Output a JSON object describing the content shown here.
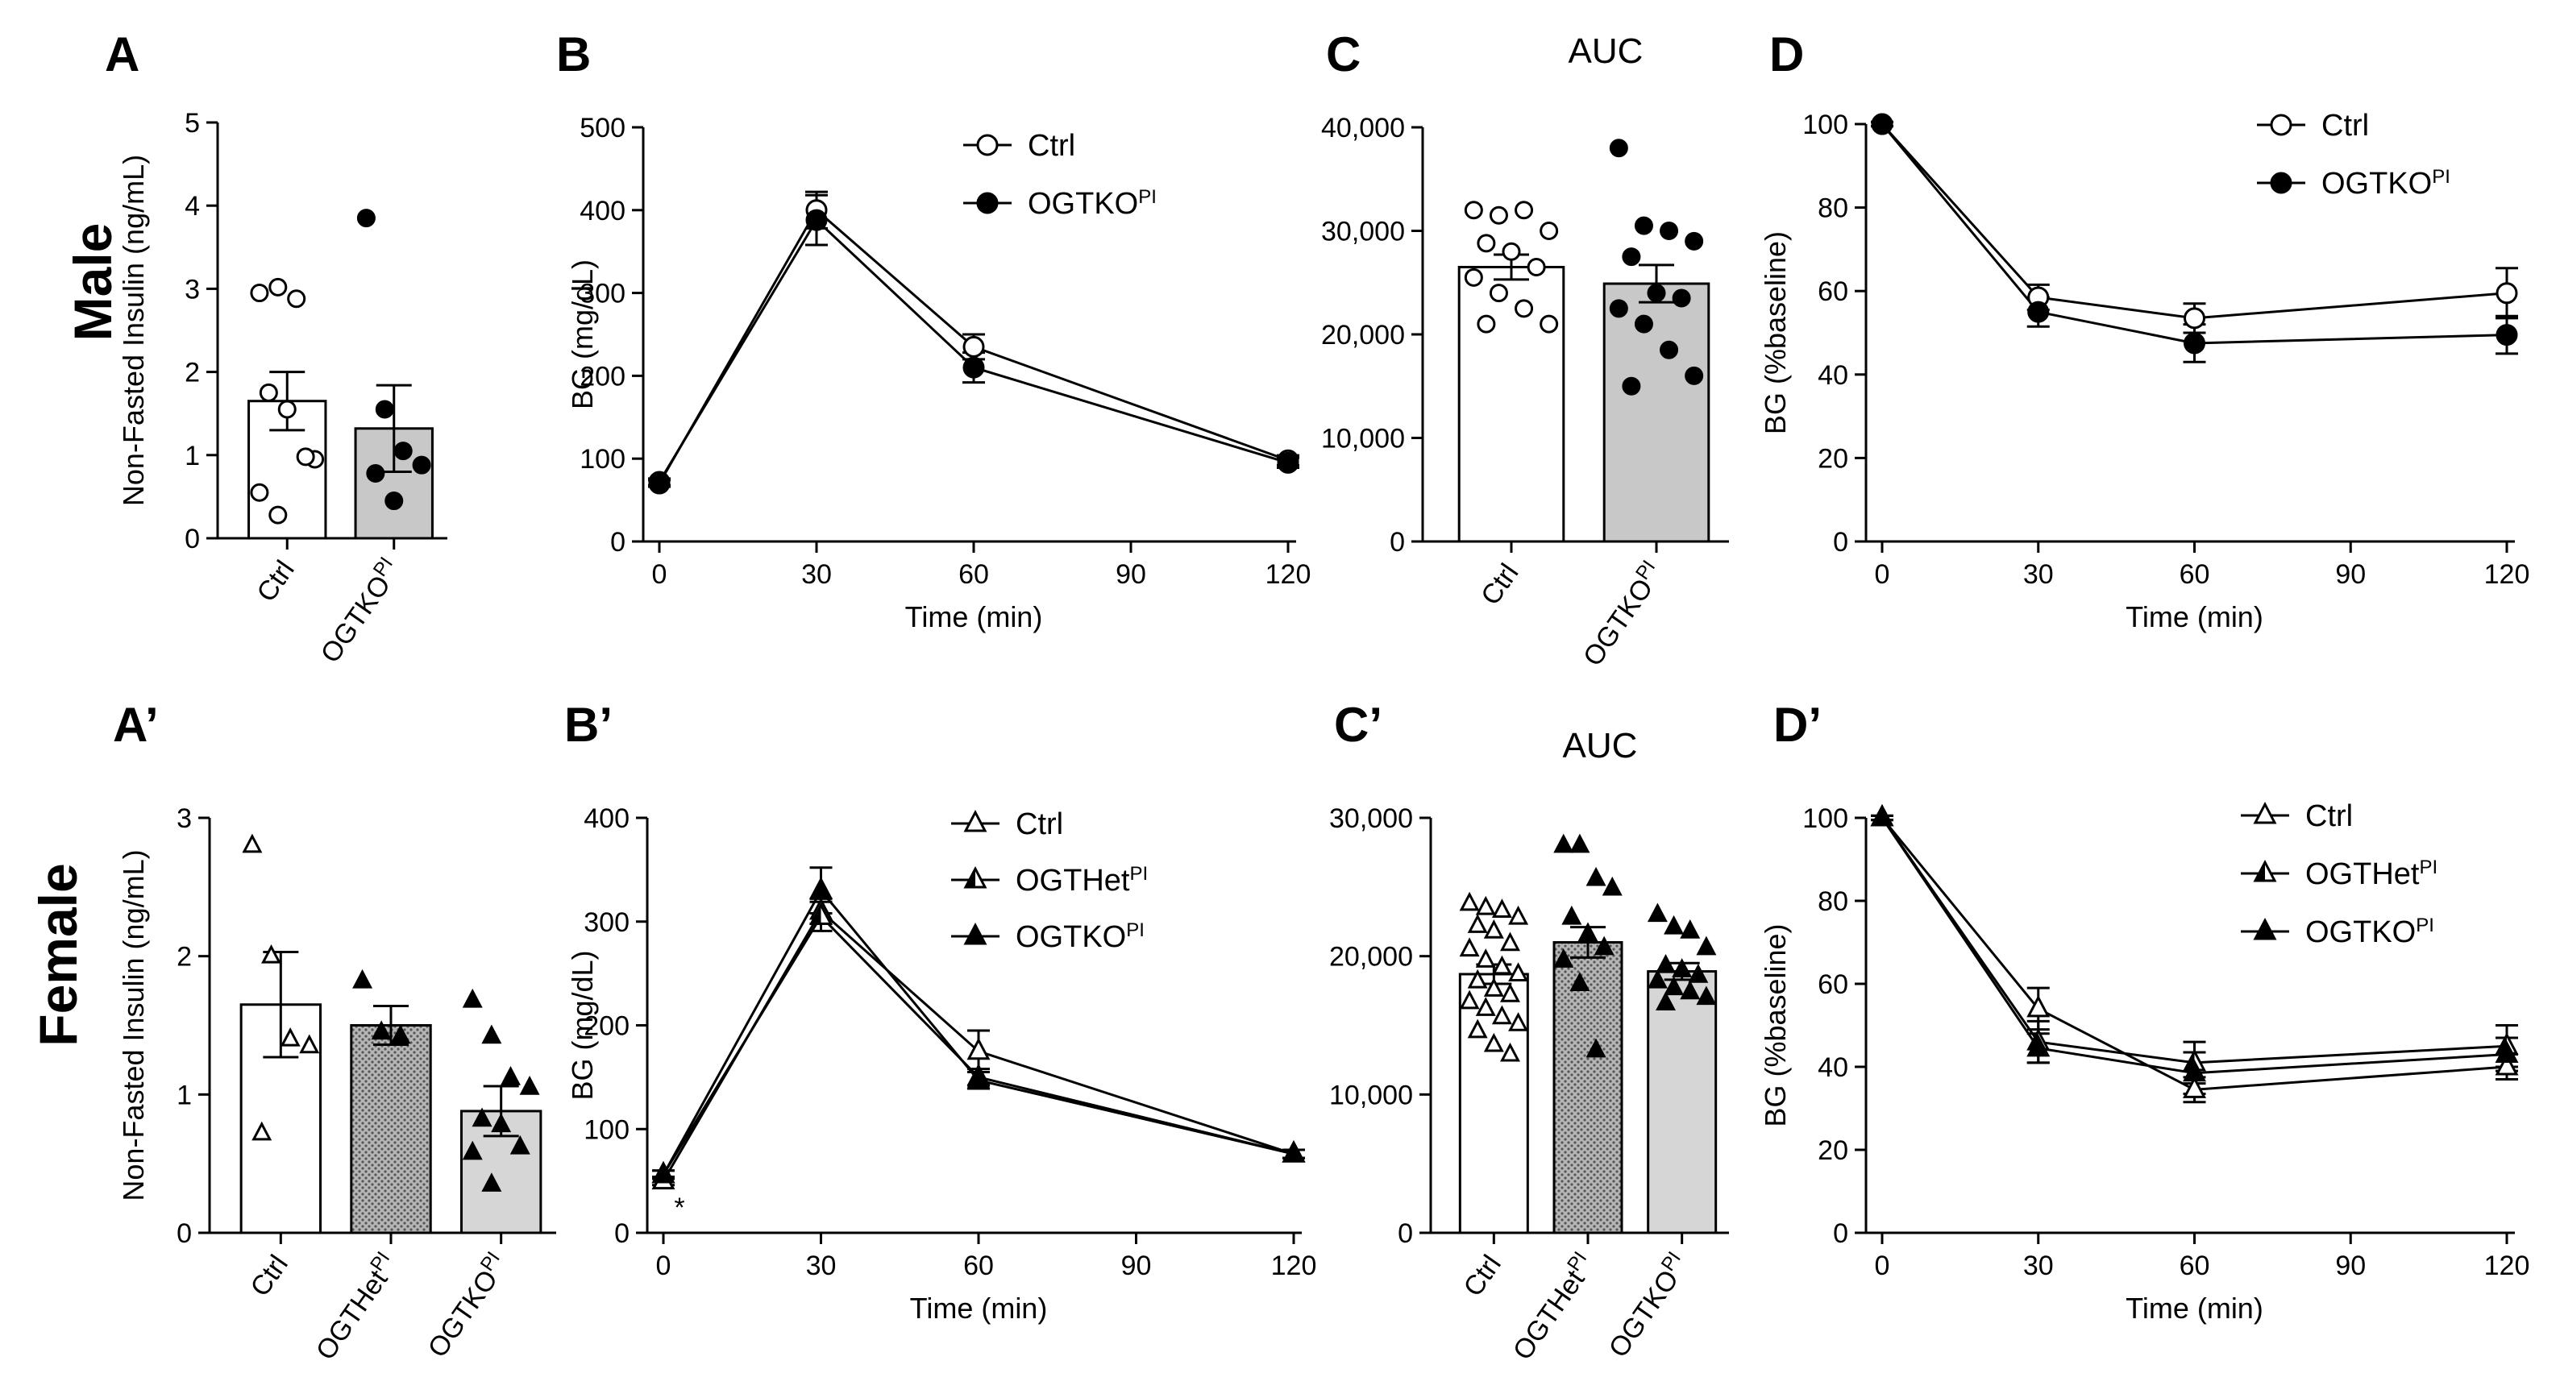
{
  "rows": [
    {
      "label": "Male"
    },
    {
      "label": "Female"
    }
  ],
  "colors": {
    "ink": "#000000",
    "bar_gray": "#c8c8c8",
    "bar_white": "#ffffff"
  },
  "chart_data": [
    {
      "id": "A",
      "panel_label": "A",
      "type": "bar",
      "title": "",
      "ylabel": "Non-Fasted Insulin (ng/mL)",
      "xlabel": "",
      "ylim": [
        0,
        5
      ],
      "yticks": [
        0,
        1,
        2,
        3,
        4,
        5
      ],
      "categories": [
        {
          "name": "Ctrl",
          "sup": ""
        },
        {
          "name": "OGTKO",
          "sup": "PI"
        }
      ],
      "values": [
        1.65,
        1.32
      ],
      "errors": [
        0.35,
        0.52
      ],
      "fills": [
        "white",
        "gray"
      ],
      "markers": [
        "circle-open",
        "circle-filled"
      ],
      "points": [
        [
          2.95,
          3.02,
          2.88,
          0.95,
          1.75,
          1.55,
          0.98,
          0.55,
          0.28
        ],
        [
          3.85,
          1.55,
          1.05,
          0.88,
          0.78,
          0.45
        ]
      ]
    },
    {
      "id": "B",
      "panel_label": "B",
      "type": "line",
      "title": "",
      "ylabel": "BG (mg/dL)",
      "xlabel": "Time (min)",
      "xlim": [
        0,
        120
      ],
      "ylim": [
        0,
        500
      ],
      "xticks": [
        0,
        30,
        60,
        90,
        120
      ],
      "yticks": [
        0,
        100,
        200,
        300,
        400,
        500
      ],
      "x": [
        0,
        30,
        60,
        120
      ],
      "series": [
        {
          "name": "Ctrl",
          "sup": "",
          "marker": "circle-open",
          "values": [
            70,
            400,
            235,
            98
          ],
          "errors": [
            4,
            22,
            15,
            6
          ]
        },
        {
          "name": "OGTKO",
          "sup": "PI",
          "marker": "circle-filled",
          "values": [
            72,
            388,
            210,
            95
          ],
          "errors": [
            4,
            30,
            18,
            6
          ]
        }
      ]
    },
    {
      "id": "C",
      "panel_label": "C",
      "type": "bar",
      "title": "AUC",
      "ylabel": "",
      "xlabel": "",
      "ylim": [
        0,
        40000
      ],
      "yticks": [
        0,
        10000,
        20000,
        30000,
        40000
      ],
      "ytick_labels": [
        "0",
        "10,000",
        "20,000",
        "30,000",
        "40,000"
      ],
      "categories": [
        {
          "name": "Ctrl",
          "sup": ""
        },
        {
          "name": "OGTKO",
          "sup": "PI"
        }
      ],
      "values": [
        26500,
        24900
      ],
      "errors": [
        1200,
        1800
      ],
      "fills": [
        "white",
        "gray"
      ],
      "markers": [
        "circle-open",
        "circle-filled"
      ],
      "points": [
        [
          32000,
          31500,
          32000,
          30000,
          28800,
          28000,
          26500,
          25500,
          24000,
          22500,
          21000,
          21000
        ],
        [
          38000,
          30500,
          30000,
          29000,
          27500,
          24000,
          23500,
          22500,
          21000,
          18500,
          16000,
          15000
        ]
      ]
    },
    {
      "id": "D",
      "panel_label": "D",
      "type": "line",
      "title": "",
      "ylabel": "BG (%baseline)",
      "xlabel": "Time (min)",
      "xlim": [
        0,
        120
      ],
      "ylim": [
        0,
        100
      ],
      "xticks": [
        0,
        30,
        60,
        90,
        120
      ],
      "yticks": [
        0,
        20,
        40,
        60,
        80,
        100
      ],
      "x": [
        0,
        30,
        60,
        120
      ],
      "series": [
        {
          "name": "Ctrl",
          "sup": "",
          "marker": "circle-open",
          "values": [
            100,
            58.5,
            53.5,
            59.5
          ],
          "errors": [
            0.5,
            3,
            3.5,
            6
          ]
        },
        {
          "name": "OGTKO",
          "sup": "PI",
          "marker": "circle-filled",
          "values": [
            100,
            55,
            47.5,
            49.5
          ],
          "errors": [
            0.5,
            3.5,
            4.5,
            4.5
          ]
        }
      ]
    },
    {
      "id": "A2",
      "panel_label": "A’",
      "type": "bar",
      "title": "",
      "ylabel": "Non-Fasted Insulin (ng/mL)",
      "xlabel": "",
      "ylim": [
        0,
        3
      ],
      "yticks": [
        0,
        1,
        2,
        3
      ],
      "categories": [
        {
          "name": "Ctrl",
          "sup": ""
        },
        {
          "name": "OGTHet",
          "sup": "PI"
        },
        {
          "name": "OGTKO",
          "sup": "PI"
        }
      ],
      "values": [
        1.65,
        1.5,
        0.88
      ],
      "errors": [
        0.38,
        0.14,
        0.18
      ],
      "fills": [
        "white",
        "hatch",
        "lightgray"
      ],
      "markers": [
        "triangle-open",
        "triangle-filled",
        "triangle-filled"
      ],
      "points": [
        [
          2.8,
          2.0,
          1.4,
          1.35,
          0.72
        ],
        [
          1.82,
          1.45,
          1.42
        ],
        [
          1.68,
          1.42,
          1.12,
          1.05,
          0.82,
          0.78,
          0.62,
          0.58,
          0.35
        ]
      ]
    },
    {
      "id": "B2",
      "panel_label": "B’",
      "type": "line",
      "title": "",
      "ylabel": "BG (mg/dL)",
      "xlabel": "Time (min)",
      "xlim": [
        0,
        120
      ],
      "ylim": [
        0,
        400
      ],
      "xticks": [
        0,
        30,
        60,
        90,
        120
      ],
      "yticks": [
        0,
        100,
        200,
        300,
        400
      ],
      "x": [
        0,
        30,
        60,
        120
      ],
      "annotation": "*",
      "series": [
        {
          "name": "Ctrl",
          "sup": "",
          "marker": "triangle-open",
          "values": [
            50,
            310,
            175,
            76
          ],
          "errors": [
            4,
            12,
            20,
            4
          ]
        },
        {
          "name": "OGTHet",
          "sup": "PI",
          "marker": "triangle-half",
          "values": [
            56,
            305,
            150,
            76
          ],
          "errors": [
            4,
            14,
            8,
            4
          ]
        },
        {
          "name": "OGTKO",
          "sup": "PI",
          "marker": "triangle-filled",
          "values": [
            56,
            330,
            147,
            76
          ],
          "errors": [
            4,
            22,
            8,
            4
          ]
        }
      ]
    },
    {
      "id": "C2",
      "panel_label": "C’",
      "type": "bar",
      "title": "AUC",
      "ylabel": "",
      "xlabel": "",
      "ylim": [
        0,
        30000
      ],
      "yticks": [
        0,
        10000,
        20000,
        30000
      ],
      "ytick_labels": [
        "0",
        "10,000",
        "20,000",
        "30,000"
      ],
      "categories": [
        {
          "name": "Ctrl",
          "sup": ""
        },
        {
          "name": "OGTHet",
          "sup": "PI"
        },
        {
          "name": "OGTKO",
          "sup": "PI"
        }
      ],
      "values": [
        18700,
        21000,
        18900
      ],
      "errors": [
        700,
        1100,
        600
      ],
      "fills": [
        "white",
        "hatch",
        "lightgray"
      ],
      "markers": [
        "triangle-open",
        "triangle-filled",
        "triangle-filled"
      ],
      "points": [
        [
          23800,
          23500,
          23300,
          22800,
          22200,
          21800,
          20900,
          20500,
          19700,
          19200,
          18700,
          18200,
          17600,
          17200,
          16700,
          16200,
          15600,
          15100,
          14600,
          13600,
          12900
        ],
        [
          28000,
          28000,
          25600,
          24900,
          22800,
          21600,
          20600,
          19700,
          18000,
          13200
        ],
        [
          23000,
          22100,
          21800,
          20600,
          19300,
          19000,
          18600,
          18200,
          17700,
          17400,
          17000,
          16600
        ]
      ]
    },
    {
      "id": "D2",
      "panel_label": "D’",
      "type": "line",
      "title": "",
      "ylabel": "BG (%baseline)",
      "xlabel": "Time (min)",
      "xlim": [
        0,
        120
      ],
      "ylim": [
        0,
        100
      ],
      "xticks": [
        0,
        30,
        60,
        90,
        120
      ],
      "yticks": [
        0,
        20,
        40,
        60,
        80,
        100
      ],
      "x": [
        0,
        30,
        60,
        120
      ],
      "series": [
        {
          "name": "Ctrl",
          "sup": "",
          "marker": "triangle-open",
          "values": [
            100,
            54,
            34.5,
            40
          ],
          "errors": [
            0.5,
            5,
            3,
            3
          ]
        },
        {
          "name": "OGTHet",
          "sup": "PI",
          "marker": "triangle-half",
          "values": [
            100,
            46,
            41,
            45
          ],
          "errors": [
            0.5,
            5,
            5,
            5
          ]
        },
        {
          "name": "OGTKO",
          "sup": "PI",
          "marker": "triangle-filled",
          "values": [
            100,
            44.5,
            38.5,
            43
          ],
          "errors": [
            0.5,
            3.5,
            5,
            4
          ]
        }
      ]
    }
  ]
}
